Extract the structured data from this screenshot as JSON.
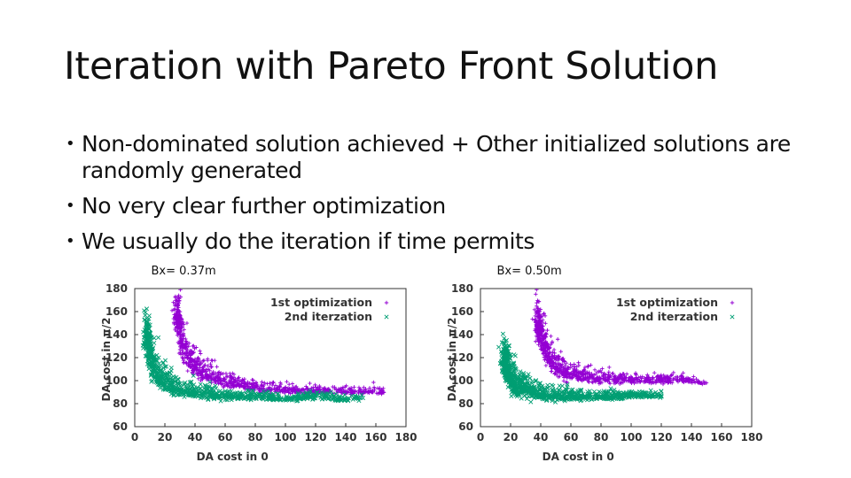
{
  "slide": {
    "title": "Iteration with Pareto Front Solution",
    "bullets": [
      "Non-dominated solution achieved + Other initialized solutions are randomly generated",
      "No very clear further optimization",
      "We usually do the iteration if time permits"
    ]
  },
  "chart_data": [
    {
      "type": "scatter",
      "title": "Bx= 0.37m",
      "xlabel": "DA cost in 0",
      "ylabel": "DA cost in π/2",
      "xlim": [
        0,
        180
      ],
      "ylim": [
        60,
        180
      ],
      "xticks": [
        "0",
        "20",
        "40",
        "60",
        "80",
        "100",
        "120",
        "140",
        "160",
        "180"
      ],
      "yticks": [
        "60",
        "80",
        "100",
        "120",
        "140",
        "160",
        "180"
      ],
      "grid": false,
      "legend": "top-right",
      "series": [
        {
          "name": "1st optimization",
          "marker": "+",
          "color": "#9400d3",
          "points": [
            [
              28,
              158
            ],
            [
              30,
              145
            ],
            [
              32,
              130
            ],
            [
              35,
              120
            ],
            [
              40,
              112
            ],
            [
              45,
              107
            ],
            [
              50,
              104
            ],
            [
              60,
              99
            ],
            [
              70,
              96
            ],
            [
              80,
              94
            ],
            [
              90,
              93
            ],
            [
              100,
              92
            ],
            [
              110,
              91
            ],
            [
              120,
              91
            ],
            [
              130,
              91
            ],
            [
              140,
              90
            ],
            [
              155,
              91
            ],
            [
              165,
              90
            ]
          ]
        },
        {
          "name": "2nd iterzation",
          "marker": "x",
          "color": "#009e73",
          "points": [
            [
              8,
              140
            ],
            [
              10,
              122
            ],
            [
              12,
              112
            ],
            [
              15,
              104
            ],
            [
              20,
              98
            ],
            [
              25,
              94
            ],
            [
              30,
              92
            ],
            [
              40,
              89
            ],
            [
              50,
              88
            ],
            [
              60,
              87
            ],
            [
              70,
              86
            ],
            [
              80,
              86
            ],
            [
              90,
              85
            ],
            [
              100,
              84
            ],
            [
              110,
              85
            ],
            [
              120,
              87
            ],
            [
              135,
              84
            ],
            [
              150,
              85
            ]
          ]
        }
      ]
    },
    {
      "type": "scatter",
      "title": "Bx= 0.50m",
      "xlabel": "DA cost in 0",
      "ylabel": "DA cost in π/2",
      "xlim": [
        0,
        180
      ],
      "ylim": [
        60,
        180
      ],
      "xticks": [
        "0",
        "20",
        "40",
        "60",
        "80",
        "100",
        "120",
        "140",
        "160",
        "180"
      ],
      "yticks": [
        "60",
        "80",
        "100",
        "120",
        "140",
        "160",
        "180"
      ],
      "grid": false,
      "legend": "top-right",
      "series": [
        {
          "name": "1st optimization",
          "marker": "+",
          "color": "#9400d3",
          "points": [
            [
              38,
              150
            ],
            [
              40,
              140
            ],
            [
              43,
              128
            ],
            [
              46,
              118
            ],
            [
              50,
              112
            ],
            [
              55,
              108
            ],
            [
              60,
              106
            ],
            [
              70,
              103
            ],
            [
              80,
              102
            ],
            [
              90,
              101
            ],
            [
              100,
              100
            ],
            [
              110,
              100
            ],
            [
              120,
              100
            ],
            [
              135,
              101
            ],
            [
              150,
              98
            ]
          ]
        },
        {
          "name": "2nd iterzation",
          "marker": "x",
          "color": "#009e73",
          "points": [
            [
              16,
              120
            ],
            [
              18,
              108
            ],
            [
              20,
              102
            ],
            [
              22,
              98
            ],
            [
              25,
              95
            ],
            [
              30,
              92
            ],
            [
              35,
              90
            ],
            [
              40,
              88
            ],
            [
              50,
              87
            ],
            [
              60,
              86
            ],
            [
              70,
              86
            ],
            [
              80,
              86
            ],
            [
              90,
              86
            ],
            [
              100,
              88
            ],
            [
              110,
              87
            ],
            [
              120,
              87
            ]
          ]
        }
      ]
    }
  ]
}
